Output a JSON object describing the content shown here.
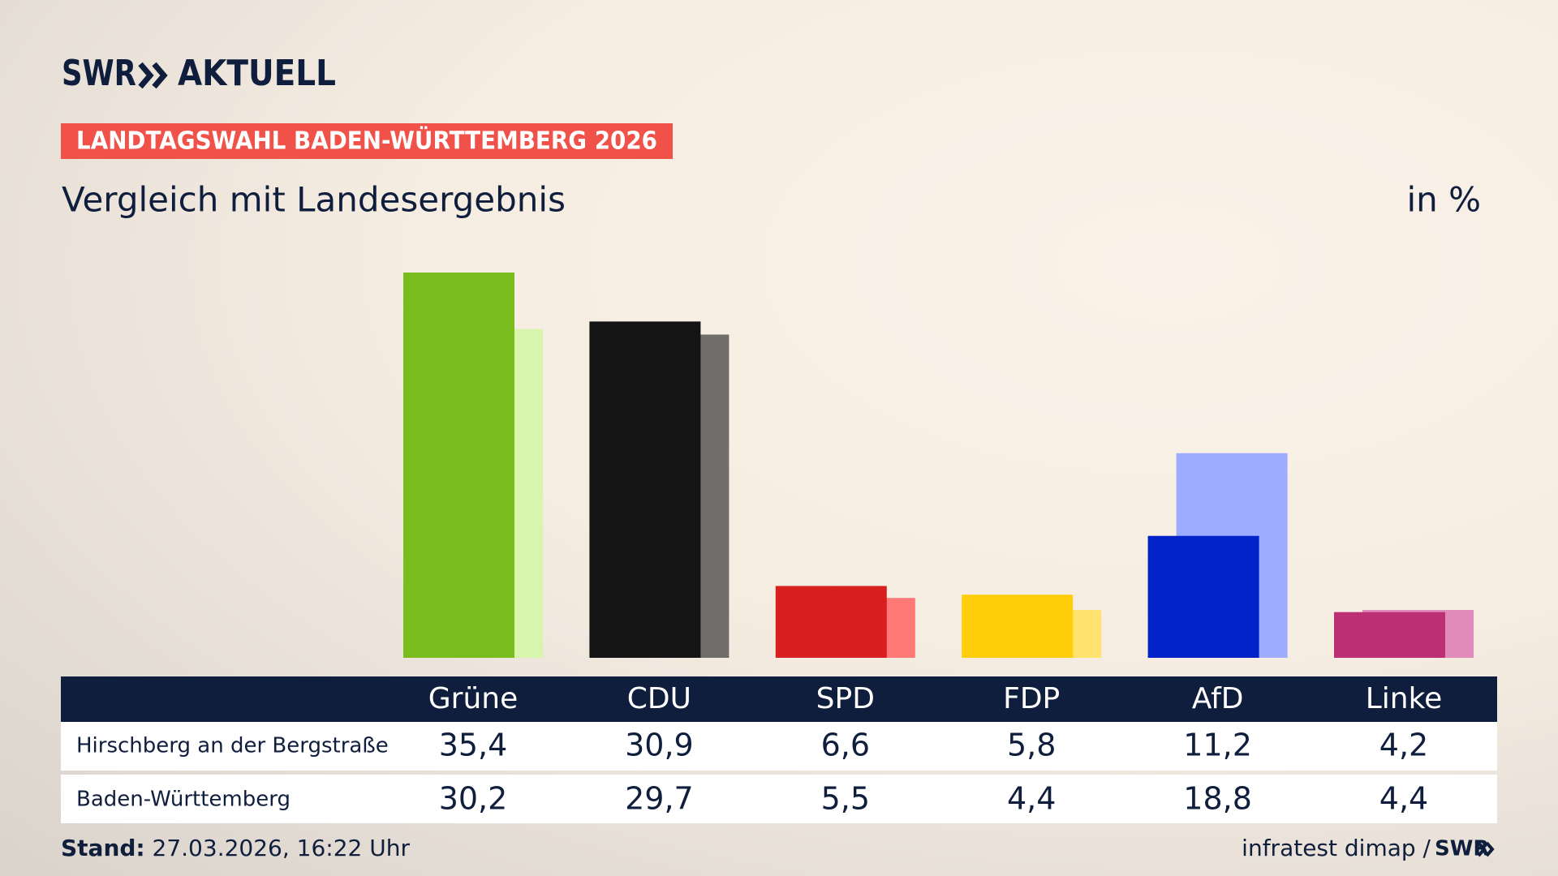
{
  "header": {
    "logo_brand": "SWR",
    "logo_product": "AKTUELL",
    "badge": "LANDTAGSWAHL BADEN-WÜRTTEMBERG 2026"
  },
  "chart_data": {
    "type": "bar",
    "title": "Vergleich mit Landesergebnis",
    "unit": "in %",
    "categories": [
      "Grüne",
      "CDU",
      "SPD",
      "FDP",
      "AfD",
      "Linke"
    ],
    "series": [
      {
        "name": "Hirschberg an der Bergstraße",
        "colors": [
          "#78bc1e",
          "#141414",
          "#d71f1f",
          "#ffcd0a",
          "#0022c8",
          "#bc2f73"
        ],
        "values": [
          35.4,
          30.9,
          6.6,
          5.8,
          11.2,
          4.2
        ],
        "value_labels": [
          "35,4",
          "30,9",
          "6,6",
          "5,8",
          "11,2",
          "4,2"
        ]
      },
      {
        "name": "Baden-Württemberg",
        "colors": [
          "#d7f5ac",
          "#706e6a",
          "#ff7a77",
          "#ffe36e",
          "#9eacff",
          "#e08bb9"
        ],
        "values": [
          30.2,
          29.7,
          5.5,
          4.4,
          18.8,
          4.4
        ],
        "value_labels": [
          "30,2",
          "29,7",
          "5,5",
          "4,4",
          "18,8",
          "4,4"
        ]
      }
    ]
  },
  "footer": {
    "stand_label": "Stand:",
    "stand_value": "27.03.2026, 16:22 Uhr",
    "source": "infratest dimap /",
    "source_brand": "SWR"
  }
}
